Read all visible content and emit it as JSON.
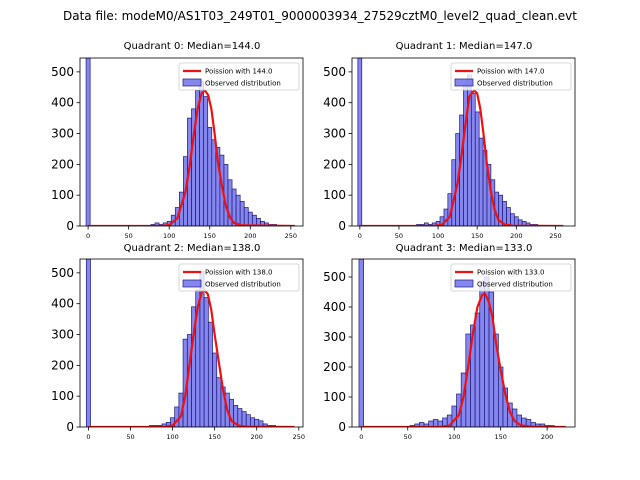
{
  "suptitle": "Data file: modeM0/AS1T03_249T01_9000003934_27529cztM0_level2_quad_clean.evt",
  "legend_labels": {
    "line": "Poission with {m}",
    "bars": "Observed distribution"
  },
  "colors": {
    "bar_fill": "#7171ec",
    "bar_edge": "#1c1c7a",
    "poisson_line": "#ee1111",
    "axis": "#000000"
  },
  "chart_data": [
    {
      "type": "bar",
      "title": "Quadrant 0: Median=144.0",
      "median": 144.0,
      "legend_line_label": "Poission with 144.0",
      "xlim": [
        -10,
        265
      ],
      "ylim": [
        0,
        545
      ],
      "xticks": [
        0,
        50,
        100,
        150,
        200,
        250
      ],
      "yticks": [
        0,
        100,
        200,
        300,
        400,
        500
      ],
      "bin_width": 5,
      "zero_bin_value": 545,
      "bins": [
        [
          80,
          5
        ],
        [
          85,
          10
        ],
        [
          90,
          5
        ],
        [
          95,
          10
        ],
        [
          100,
          15
        ],
        [
          105,
          35
        ],
        [
          110,
          60
        ],
        [
          115,
          110
        ],
        [
          120,
          225
        ],
        [
          125,
          350
        ],
        [
          130,
          380
        ],
        [
          135,
          440
        ],
        [
          140,
          470
        ],
        [
          145,
          420
        ],
        [
          150,
          320
        ],
        [
          155,
          280
        ],
        [
          160,
          255
        ],
        [
          165,
          230
        ],
        [
          170,
          200
        ],
        [
          175,
          150
        ],
        [
          180,
          120
        ],
        [
          185,
          100
        ],
        [
          190,
          80
        ],
        [
          195,
          60
        ],
        [
          200,
          45
        ],
        [
          205,
          35
        ],
        [
          210,
          25
        ],
        [
          215,
          15
        ],
        [
          220,
          10
        ],
        [
          225,
          5
        ],
        [
          230,
          5
        ]
      ],
      "poisson": [
        [
          0,
          0
        ],
        [
          90,
          0
        ],
        [
          100,
          3
        ],
        [
          110,
          25
        ],
        [
          120,
          110
        ],
        [
          125,
          190
        ],
        [
          130,
          290
        ],
        [
          135,
          380
        ],
        [
          140,
          430
        ],
        [
          144,
          440
        ],
        [
          148,
          425
        ],
        [
          152,
          380
        ],
        [
          156,
          300
        ],
        [
          160,
          210
        ],
        [
          165,
          130
        ],
        [
          170,
          65
        ],
        [
          175,
          28
        ],
        [
          180,
          10
        ],
        [
          190,
          2
        ],
        [
          255,
          0
        ]
      ]
    },
    {
      "type": "bar",
      "title": "Quadrant 1: Median=147.0",
      "median": 147.0,
      "legend_line_label": "Poission with 147.0",
      "xlim": [
        -10,
        275
      ],
      "ylim": [
        0,
        545
      ],
      "xticks": [
        0,
        50,
        100,
        150,
        200,
        250
      ],
      "yticks": [
        0,
        100,
        200,
        300,
        400,
        500
      ],
      "bin_width": 5,
      "zero_bin_value": 545,
      "bins": [
        [
          75,
          5
        ],
        [
          80,
          5
        ],
        [
          85,
          10
        ],
        [
          90,
          5
        ],
        [
          95,
          10
        ],
        [
          100,
          15
        ],
        [
          105,
          30
        ],
        [
          110,
          55
        ],
        [
          115,
          105
        ],
        [
          120,
          215
        ],
        [
          125,
          300
        ],
        [
          130,
          360
        ],
        [
          135,
          460
        ],
        [
          140,
          490
        ],
        [
          145,
          430
        ],
        [
          150,
          370
        ],
        [
          155,
          285
        ],
        [
          160,
          245
        ],
        [
          165,
          200
        ],
        [
          170,
          150
        ],
        [
          175,
          110
        ],
        [
          180,
          100
        ],
        [
          185,
          80
        ],
        [
          190,
          60
        ],
        [
          195,
          40
        ],
        [
          200,
          30
        ],
        [
          205,
          20
        ],
        [
          210,
          15
        ],
        [
          215,
          10
        ],
        [
          220,
          5
        ],
        [
          225,
          5
        ]
      ],
      "poisson": [
        [
          0,
          0
        ],
        [
          95,
          0
        ],
        [
          105,
          4
        ],
        [
          115,
          30
        ],
        [
          125,
          140
        ],
        [
          130,
          230
        ],
        [
          135,
          330
        ],
        [
          140,
          420
        ],
        [
          146,
          440
        ],
        [
          150,
          430
        ],
        [
          154,
          380
        ],
        [
          158,
          300
        ],
        [
          162,
          210
        ],
        [
          167,
          120
        ],
        [
          172,
          55
        ],
        [
          177,
          20
        ],
        [
          185,
          5
        ],
        [
          195,
          1
        ],
        [
          260,
          0
        ]
      ]
    },
    {
      "type": "bar",
      "title": "Quadrant 2: Median=138.0",
      "median": 138.0,
      "legend_line_label": "Poission with 138.0",
      "xlim": [
        -10,
        255
      ],
      "ylim": [
        0,
        545
      ],
      "xticks": [
        0,
        50,
        100,
        150,
        200,
        250
      ],
      "yticks": [
        0,
        100,
        200,
        300,
        400,
        500
      ],
      "bin_width": 5,
      "zero_bin_value": 545,
      "bins": [
        [
          75,
          5
        ],
        [
          80,
          5
        ],
        [
          85,
          5
        ],
        [
          90,
          10
        ],
        [
          95,
          15
        ],
        [
          100,
          30
        ],
        [
          105,
          65
        ],
        [
          110,
          110
        ],
        [
          115,
          285
        ],
        [
          120,
          300
        ],
        [
          125,
          390
        ],
        [
          130,
          445
        ],
        [
          135,
          505
        ],
        [
          140,
          420
        ],
        [
          145,
          340
        ],
        [
          150,
          240
        ],
        [
          155,
          160
        ],
        [
          160,
          130
        ],
        [
          165,
          110
        ],
        [
          170,
          90
        ],
        [
          175,
          70
        ],
        [
          180,
          60
        ],
        [
          185,
          50
        ],
        [
          190,
          40
        ],
        [
          195,
          30
        ],
        [
          200,
          25
        ],
        [
          205,
          20
        ],
        [
          210,
          10
        ],
        [
          215,
          5
        ],
        [
          220,
          5
        ]
      ],
      "poisson": [
        [
          0,
          0
        ],
        [
          90,
          0
        ],
        [
          100,
          5
        ],
        [
          110,
          35
        ],
        [
          115,
          100
        ],
        [
          120,
          200
        ],
        [
          125,
          300
        ],
        [
          130,
          390
        ],
        [
          135,
          440
        ],
        [
          138,
          445
        ],
        [
          142,
          430
        ],
        [
          146,
          380
        ],
        [
          150,
          300
        ],
        [
          155,
          210
        ],
        [
          160,
          120
        ],
        [
          165,
          55
        ],
        [
          170,
          20
        ],
        [
          178,
          5
        ],
        [
          188,
          1
        ],
        [
          245,
          0
        ]
      ]
    },
    {
      "type": "bar",
      "title": "Quadrant 3: Median=133.0",
      "median": 133.0,
      "legend_line_label": "Poission with 133.0",
      "xlim": [
        -10,
        230
      ],
      "ylim": [
        0,
        560
      ],
      "xticks": [
        0,
        50,
        100,
        150,
        200
      ],
      "yticks": [
        0,
        100,
        200,
        300,
        400,
        500
      ],
      "bin_width": 5,
      "zero_bin_value": 560,
      "bins": [
        [
          55,
          5
        ],
        [
          60,
          10
        ],
        [
          65,
          15
        ],
        [
          70,
          10
        ],
        [
          75,
          20
        ],
        [
          80,
          25
        ],
        [
          85,
          20
        ],
        [
          90,
          30
        ],
        [
          95,
          40
        ],
        [
          100,
          70
        ],
        [
          105,
          110
        ],
        [
          110,
          180
        ],
        [
          115,
          310
        ],
        [
          120,
          340
        ],
        [
          125,
          380
        ],
        [
          130,
          480
        ],
        [
          135,
          500
        ],
        [
          140,
          450
        ],
        [
          145,
          310
        ],
        [
          150,
          200
        ],
        [
          155,
          130
        ],
        [
          160,
          80
        ],
        [
          165,
          60
        ],
        [
          170,
          40
        ],
        [
          175,
          30
        ],
        [
          180,
          25
        ],
        [
          185,
          15
        ],
        [
          190,
          10
        ],
        [
          195,
          10
        ],
        [
          200,
          5
        ],
        [
          205,
          5
        ]
      ],
      "poisson": [
        [
          0,
          0
        ],
        [
          85,
          0
        ],
        [
          95,
          5
        ],
        [
          105,
          40
        ],
        [
          110,
          100
        ],
        [
          115,
          200
        ],
        [
          120,
          310
        ],
        [
          125,
          400
        ],
        [
          130,
          440
        ],
        [
          133,
          445
        ],
        [
          137,
          420
        ],
        [
          141,
          370
        ],
        [
          145,
          280
        ],
        [
          150,
          190
        ],
        [
          155,
          110
        ],
        [
          160,
          50
        ],
        [
          165,
          20
        ],
        [
          172,
          5
        ],
        [
          185,
          1
        ],
        [
          220,
          0
        ]
      ]
    }
  ]
}
